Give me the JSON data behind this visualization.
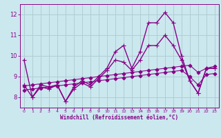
{
  "xlabel": "Windchill (Refroidissement éolien,°C)",
  "background_color": "#cbe8ee",
  "grid_color": "#b0cdd4",
  "line_color": "#880088",
  "xlim": [
    -0.5,
    23.5
  ],
  "ylim": [
    7.5,
    12.5
  ],
  "yticks": [
    8,
    9,
    10,
    11,
    12
  ],
  "xticks": [
    0,
    1,
    2,
    3,
    4,
    5,
    6,
    7,
    8,
    9,
    10,
    11,
    12,
    13,
    14,
    15,
    16,
    17,
    18,
    19,
    20,
    21,
    22,
    23
  ],
  "series": [
    {
      "x": [
        0,
        1,
        2,
        3,
        4,
        5,
        6,
        7,
        8,
        9,
        10,
        11,
        12,
        13,
        14,
        15,
        16,
        17,
        18,
        19,
        20,
        21,
        22,
        23
      ],
      "y": [
        9.8,
        8.0,
        8.6,
        8.5,
        8.6,
        7.8,
        8.5,
        8.8,
        8.6,
        9.0,
        9.4,
        10.2,
        10.5,
        9.4,
        10.2,
        11.6,
        11.6,
        12.1,
        11.6,
        10.0,
        8.8,
        8.2,
        9.4,
        9.4
      ],
      "marker": "+",
      "linestyle": "-",
      "linewidth": 1.0,
      "markersize": 5
    },
    {
      "x": [
        0,
        1,
        2,
        3,
        4,
        5,
        6,
        7,
        8,
        9,
        10,
        11,
        12,
        13,
        14,
        15,
        16,
        17,
        18,
        19,
        20,
        21,
        22,
        23
      ],
      "y": [
        8.6,
        8.0,
        8.5,
        8.4,
        8.6,
        7.8,
        8.4,
        8.7,
        8.5,
        8.9,
        9.3,
        9.8,
        9.7,
        9.3,
        9.8,
        10.5,
        10.5,
        11.0,
        10.5,
        9.8,
        8.8,
        8.2,
        9.4,
        9.4
      ],
      "marker": "+",
      "linestyle": "-",
      "linewidth": 1.0,
      "markersize": 4
    },
    {
      "x": [
        0,
        1,
        2,
        3,
        4,
        5,
        6,
        7,
        8,
        9,
        10,
        11,
        12,
        13,
        14,
        15,
        16,
        17,
        18,
        19,
        20,
        21,
        22,
        23
      ],
      "y": [
        8.55,
        8.6,
        8.65,
        8.7,
        8.75,
        8.8,
        8.85,
        8.9,
        8.95,
        9.0,
        9.05,
        9.1,
        9.15,
        9.2,
        9.25,
        9.3,
        9.35,
        9.4,
        9.45,
        9.5,
        9.55,
        9.2,
        9.4,
        9.5
      ],
      "marker": "D",
      "linestyle": "-",
      "linewidth": 0.8,
      "markersize": 2.5
    },
    {
      "x": [
        0,
        1,
        2,
        3,
        4,
        5,
        6,
        7,
        8,
        9,
        10,
        11,
        12,
        13,
        14,
        15,
        16,
        17,
        18,
        19,
        20,
        21,
        22,
        23
      ],
      "y": [
        8.35,
        8.4,
        8.45,
        8.5,
        8.55,
        8.6,
        8.65,
        8.7,
        8.75,
        8.8,
        8.85,
        8.9,
        8.95,
        9.0,
        9.05,
        9.1,
        9.15,
        9.2,
        9.25,
        9.3,
        9.0,
        8.6,
        9.1,
        9.15
      ],
      "marker": "D",
      "linestyle": "-",
      "linewidth": 0.8,
      "markersize": 2.5
    }
  ]
}
